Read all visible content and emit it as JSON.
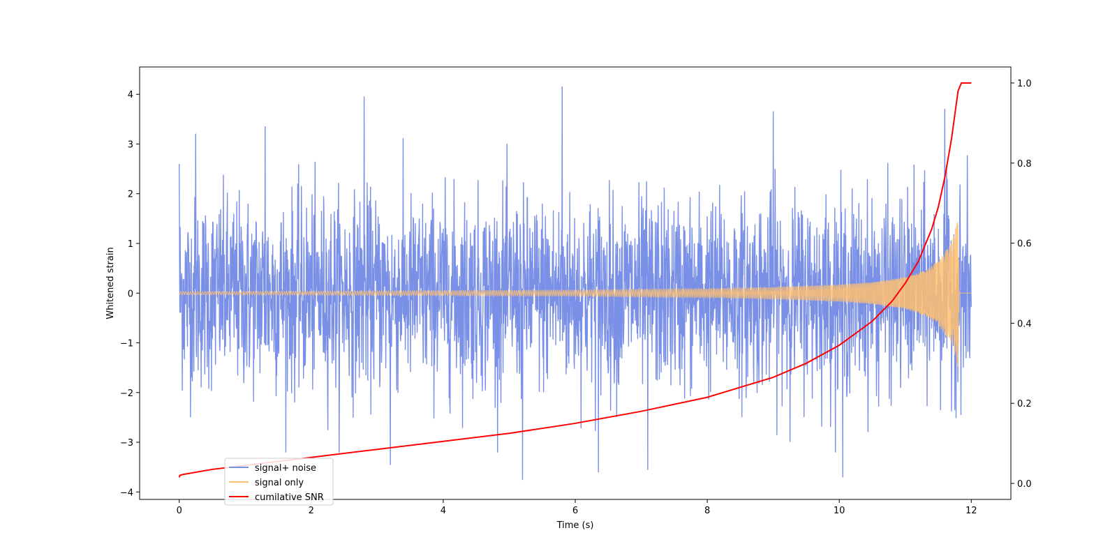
{
  "chart_data": {
    "type": "line",
    "title": "",
    "xlabel": "Time (s)",
    "ylabel": "Whitened strain",
    "ylabel_right": "",
    "xlim": [
      -0.6,
      12.6
    ],
    "ylim": [
      -4.15,
      4.55
    ],
    "y2lim": [
      -0.04,
      1.04
    ],
    "x_ticks": [
      0,
      2,
      4,
      6,
      8,
      10,
      12
    ],
    "y_ticks": [
      -4,
      -3,
      -2,
      -1,
      0,
      1,
      2,
      3,
      4
    ],
    "y2_ticks": [
      0.0,
      0.2,
      0.4,
      0.6,
      0.8,
      1.0
    ],
    "x_tick_labels": [
      "0",
      "2",
      "4",
      "6",
      "8",
      "10",
      "12"
    ],
    "y_tick_labels": [
      "−4",
      "−3",
      "−2",
      "−1",
      "0",
      "1",
      "2",
      "3",
      "4"
    ],
    "y2_tick_labels": [
      "0.0",
      "0.2",
      "0.4",
      "0.6",
      "0.8",
      "1.0"
    ],
    "grid": false,
    "legend_position": "lower-left",
    "series": [
      {
        "name": "signal+ noise",
        "axis": "left",
        "color": "#7990e6",
        "description_values": {
          "t_start": 0.0,
          "t_end": 12.0,
          "typical_min": -2.0,
          "typical_max": 2.0,
          "peak_values": [
            {
              "x": 0.0,
              "y": 2.6
            },
            {
              "x": 0.25,
              "y": 3.2
            },
            {
              "x": 1.3,
              "y": 3.35
            },
            {
              "x": 2.8,
              "y": 3.95
            },
            {
              "x": 5.8,
              "y": 4.15
            },
            {
              "x": 9.0,
              "y": 3.65
            },
            {
              "x": 11.6,
              "y": 3.7
            },
            {
              "x": 5.2,
              "y": -3.75
            },
            {
              "x": 6.35,
              "y": -3.6
            },
            {
              "x": 10.05,
              "y": -3.7
            },
            {
              "x": 7.1,
              "y": -3.55
            },
            {
              "x": 3.2,
              "y": -3.45
            }
          ]
        }
      },
      {
        "name": "signal only",
        "axis": "left",
        "color": "#ffbf70",
        "amplitude_envelope": [
          {
            "x": 0.0,
            "y": 0.03
          },
          {
            "x": 2.0,
            "y": 0.04
          },
          {
            "x": 4.0,
            "y": 0.05
          },
          {
            "x": 6.0,
            "y": 0.06
          },
          {
            "x": 8.0,
            "y": 0.09
          },
          {
            "x": 9.0,
            "y": 0.12
          },
          {
            "x": 10.0,
            "y": 0.17
          },
          {
            "x": 10.5,
            "y": 0.22
          },
          {
            "x": 11.0,
            "y": 0.32
          },
          {
            "x": 11.3,
            "y": 0.45
          },
          {
            "x": 11.5,
            "y": 0.65
          },
          {
            "x": 11.7,
            "y": 1.0
          },
          {
            "x": 11.8,
            "y": 1.5
          },
          {
            "x": 11.82,
            "y": 0.0
          },
          {
            "x": 12.0,
            "y": 0.0
          }
        ]
      },
      {
        "name": "cumilative SNR",
        "axis": "right",
        "color": "#ff0000",
        "x": [
          0.0,
          0.01,
          0.05,
          0.5,
          1.0,
          2.0,
          3.0,
          4.0,
          5.0,
          6.0,
          7.0,
          8.0,
          9.0,
          9.5,
          10.0,
          10.5,
          10.8,
          11.0,
          11.2,
          11.4,
          11.5,
          11.6,
          11.7,
          11.75,
          11.8,
          11.85,
          12.0
        ],
        "y": [
          0.015,
          0.02,
          0.022,
          0.035,
          0.045,
          0.065,
          0.085,
          0.105,
          0.125,
          0.15,
          0.18,
          0.215,
          0.265,
          0.3,
          0.345,
          0.405,
          0.455,
          0.5,
          0.555,
          0.635,
          0.69,
          0.765,
          0.86,
          0.92,
          0.98,
          1.0,
          1.0
        ]
      }
    ]
  }
}
